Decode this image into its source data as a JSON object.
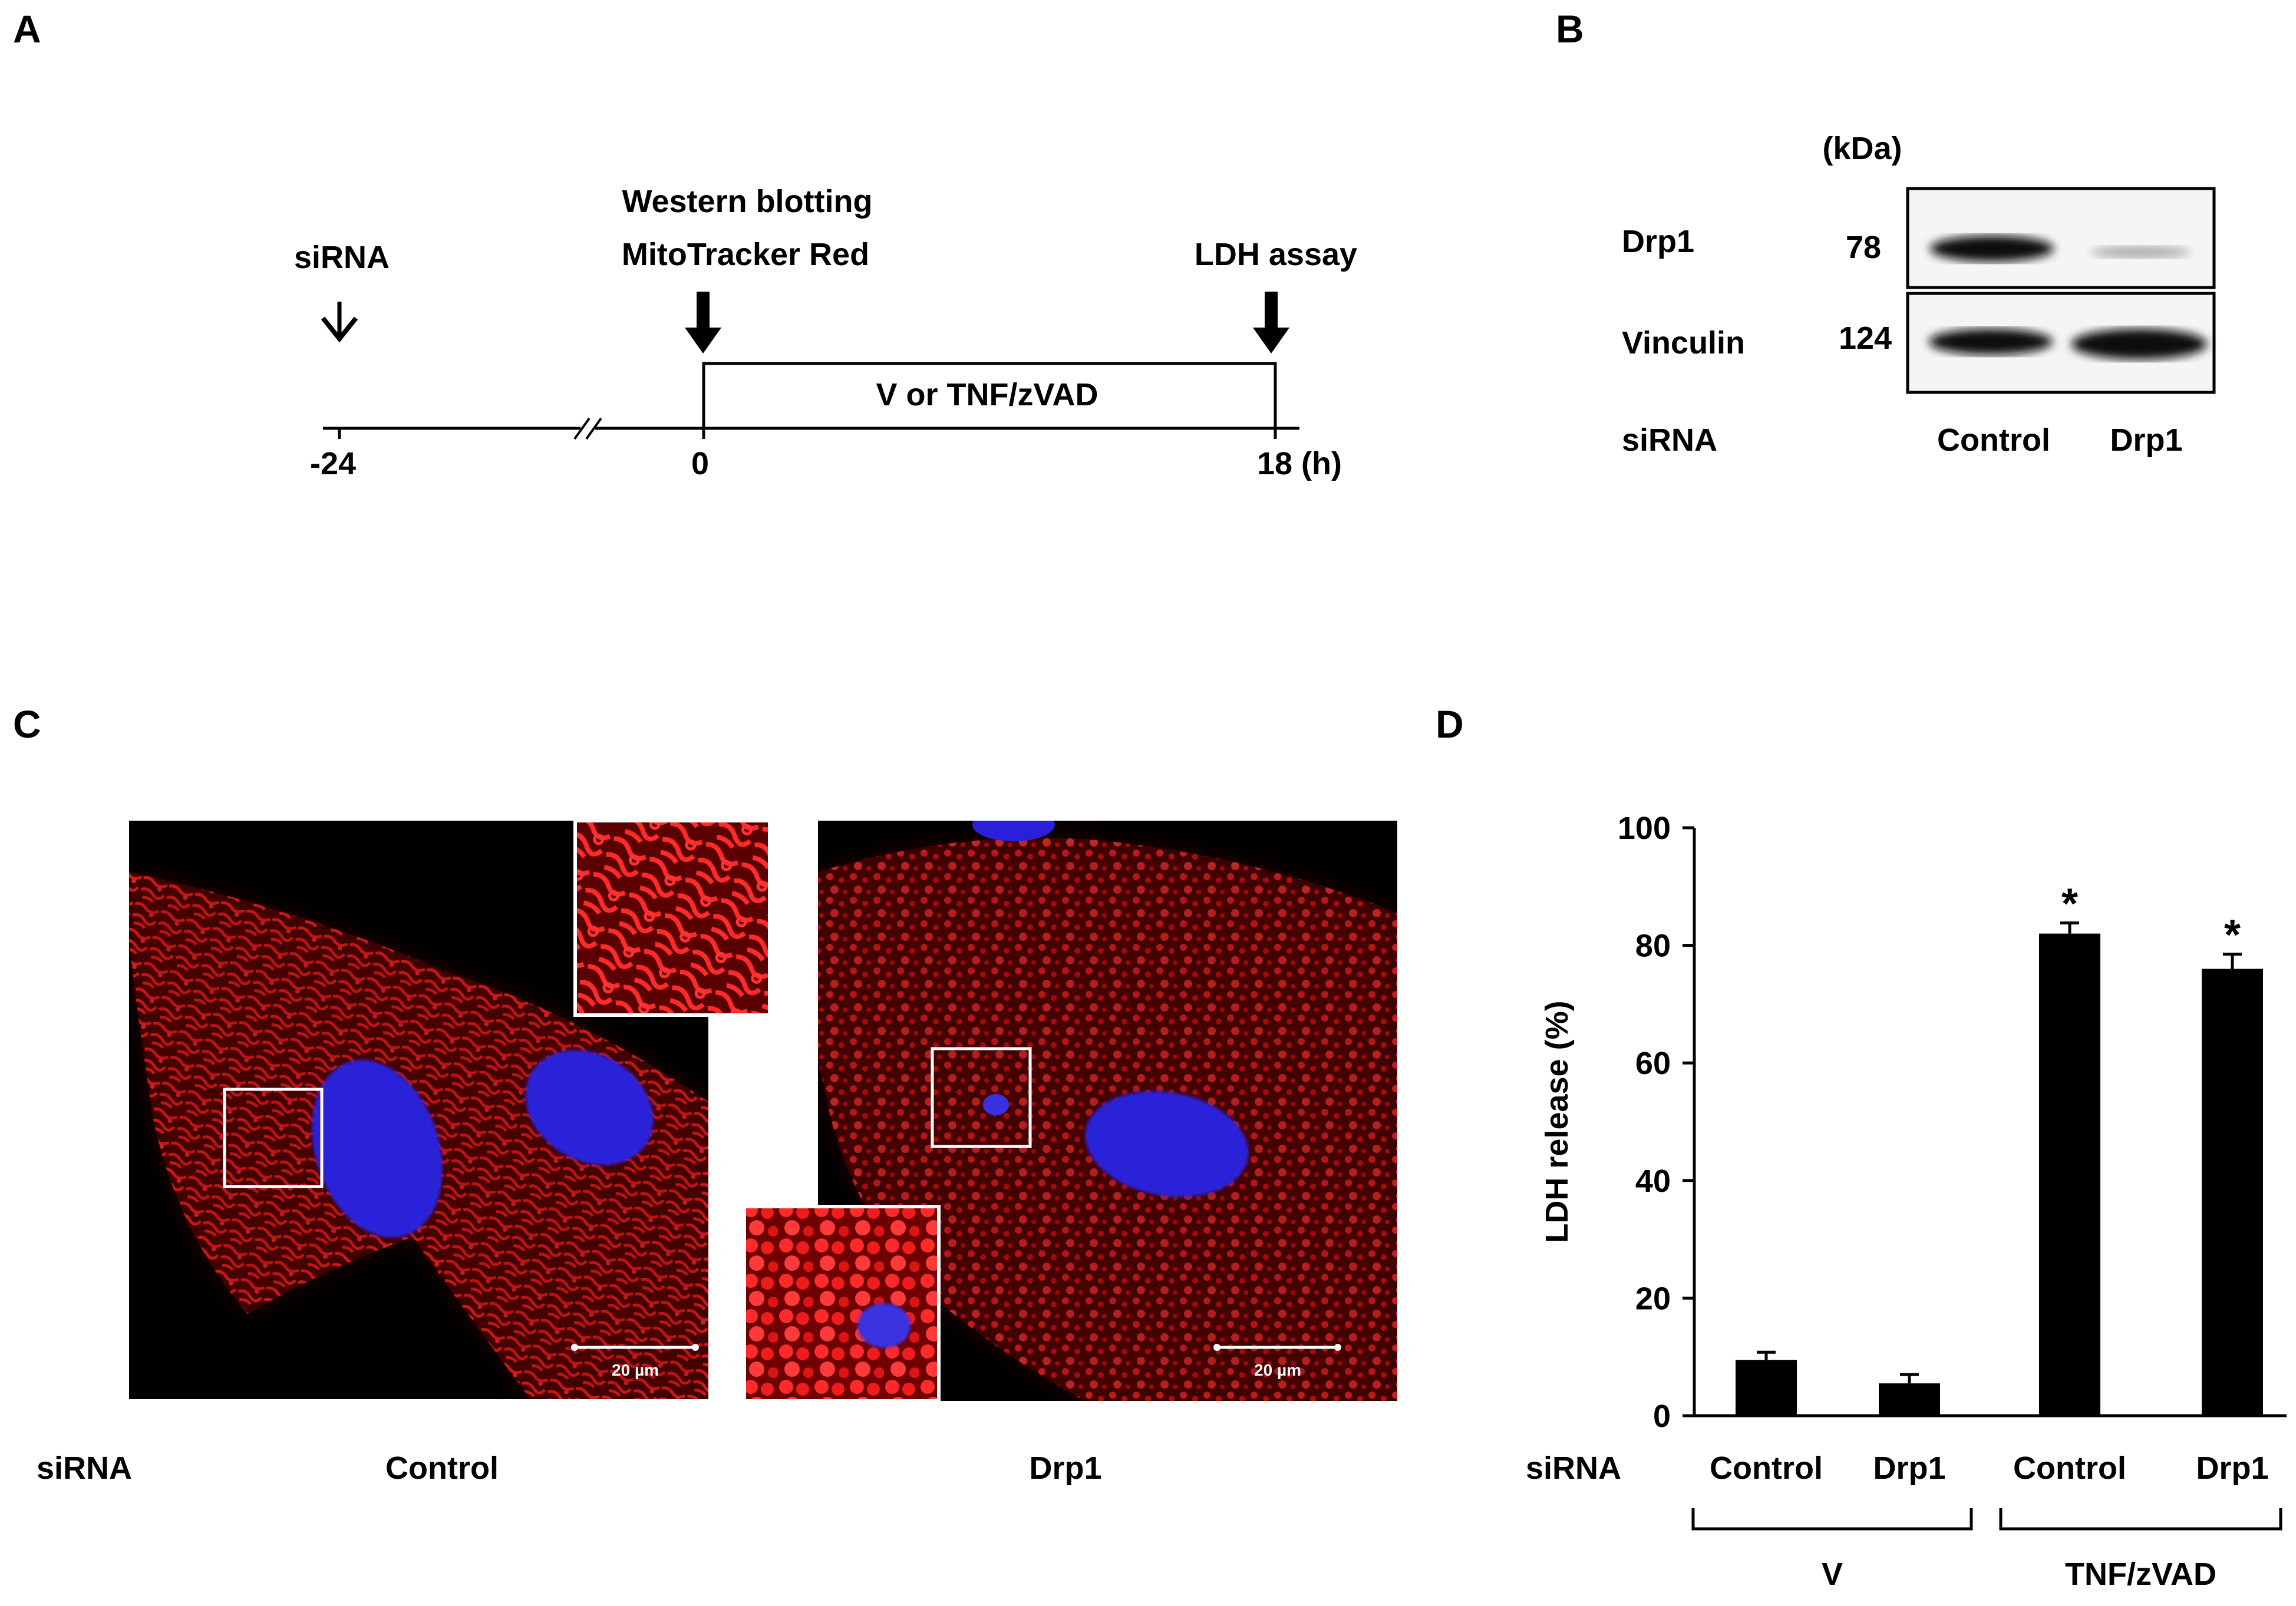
{
  "panel_labels": {
    "a": "A",
    "b": "B",
    "c": "C",
    "d": "D"
  },
  "timeline": {
    "sirna": "siRNA",
    "western": "Western blotting",
    "mitotracker": "MitoTracker Red",
    "ldh": "LDH assay",
    "treatment": "V or TNF/zVAD",
    "tick_neg24": "-24",
    "tick_0": "0",
    "tick_18": "18 (h)"
  },
  "blot": {
    "unit": "(kDa)",
    "protein1": "Drp1",
    "mw1": "78",
    "protein2": "Vinculin",
    "mw2": "124",
    "row_label": "siRNA",
    "lane1": "Control",
    "lane2": "Drp1"
  },
  "micro": {
    "row_label": "siRNA",
    "left_label": "Control",
    "right_label": "Drp1",
    "scale_left": "20 µm",
    "scale_right": "20 µm"
  },
  "chart_data": {
    "type": "bar",
    "ylabel": "LDH release (%)",
    "ylim": [
      0,
      100
    ],
    "yticks": [
      0,
      20,
      40,
      60,
      80,
      100
    ],
    "ytick_labels": [
      "0",
      "20",
      "40",
      "60",
      "80",
      "100"
    ],
    "sirna_label": "siRNA",
    "categories": [
      "Control",
      "Drp1",
      "Control",
      "Drp1"
    ],
    "values": [
      9.5,
      5.5,
      82,
      76
    ],
    "errors": [
      1.3,
      1.5,
      1.8,
      2.5
    ],
    "significance": [
      "",
      "",
      "*",
      "*"
    ],
    "groups": [
      {
        "label": "V",
        "categories": [
          0,
          1
        ]
      },
      {
        "label": "TNF/zVAD",
        "categories": [
          2,
          3
        ]
      }
    ],
    "bar_color": "#000000",
    "grid": false
  }
}
